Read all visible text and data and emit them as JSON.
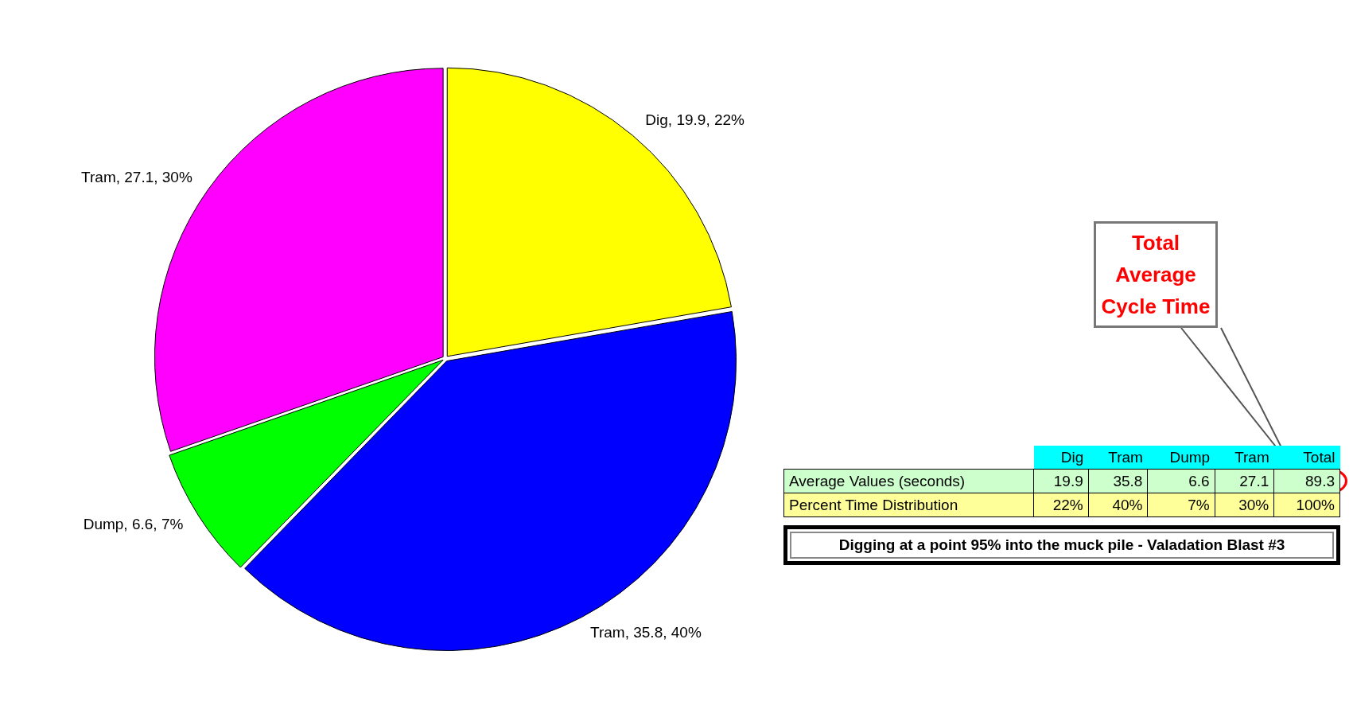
{
  "chart_data": [
    {
      "type": "pie",
      "categories": [
        "Dig, 19.9, 22%",
        "Tram, 35.8, 40%",
        "Dump, 6.6, 7%",
        "Tram, 27.1, 30%"
      ],
      "values": [
        19.9,
        35.8,
        6.6,
        27.1
      ],
      "colors": [
        "#ffff00",
        "#0000ff",
        "#00ff00",
        "#ff00ff"
      ],
      "data_labels": false
    },
    {
      "type": "other",
      "title": "Digging at a point 95% into the muck pile - Valadation Blast #3",
      "categories": [
        "Dig",
        "Tram",
        "Dump",
        "Tram",
        "Total"
      ],
      "data_labels": true,
      "series": [
        {
          "name": "Average Values (seconds)",
          "color": "#ccffcc",
          "values": [
            19.9,
            35.8,
            6.6,
            27.1,
            89.3
          ]
        },
        {
          "name": "Percent Time Distribution",
          "color": "#ffff99",
          "values": [
            22,
            40,
            7,
            30,
            100
          ],
          "value_labels": [
            "22%",
            "40%",
            "7%",
            "30%",
            "100%"
          ]
        }
      ],
      "annotations": [
        "Total Average Cycle Time"
      ]
    }
  ]
}
